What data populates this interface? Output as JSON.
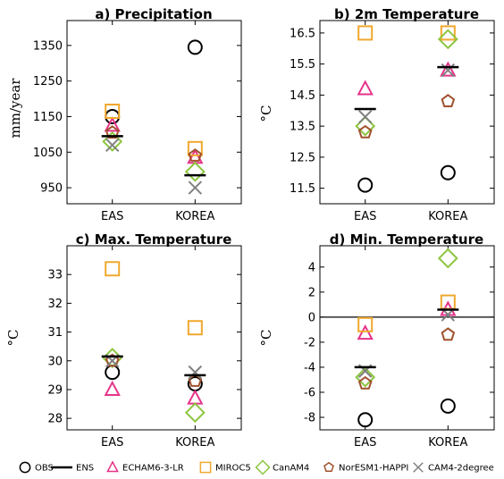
{
  "legend": [
    {
      "key": "OBS",
      "label": "OBS",
      "marker": "circle",
      "color": "#000000"
    },
    {
      "key": "ENS",
      "label": "ENS",
      "marker": "hline",
      "color": "#000000"
    },
    {
      "key": "ECHAM",
      "label": "ECHAM6-3-LR",
      "marker": "triangle",
      "color": "#e6338a"
    },
    {
      "key": "MIROC5",
      "label": "MIROC5",
      "marker": "square",
      "color": "#f0a82e"
    },
    {
      "key": "CanAM4",
      "label": "CanAM4",
      "marker": "diamond",
      "color": "#8dc63f"
    },
    {
      "key": "NorESM",
      "label": "NorESM1-HAPPI",
      "marker": "pentagon",
      "color": "#a0522d"
    },
    {
      "key": "CAM4",
      "label": "CAM4-2degree",
      "marker": "x",
      "color": "#808080"
    }
  ],
  "chart_data": [
    {
      "type": "scatter",
      "title": "a) Precipitation",
      "ylabel": "mm/year",
      "categories": [
        "EAS",
        "KOREA"
      ],
      "ylim": [
        905,
        1420
      ],
      "yticks": [
        950,
        1050,
        1150,
        1250,
        1350
      ],
      "zero_line": false,
      "series": [
        {
          "name": "OBS",
          "values": [
            1150,
            1345
          ]
        },
        {
          "name": "ENS",
          "values": [
            1095,
            985
          ]
        },
        {
          "name": "ECHAM6-3-LR",
          "values": [
            1125,
            1035
          ]
        },
        {
          "name": "MIROC5",
          "values": [
            1165,
            1060
          ]
        },
        {
          "name": "CanAM4",
          "values": [
            1080,
            995
          ]
        },
        {
          "name": "NorESM1-HAPPI",
          "values": [
            1105,
            1040
          ]
        },
        {
          "name": "CAM4-2degree",
          "values": [
            1070,
            950
          ]
        }
      ]
    },
    {
      "type": "scatter",
      "title": "b) 2m Temperature",
      "ylabel": "°C",
      "categories": [
        "EAS",
        "KOREA"
      ],
      "ylim": [
        11.0,
        16.9
      ],
      "yticks": [
        11.5,
        12.5,
        13.5,
        14.5,
        15.5,
        16.5
      ],
      "zero_line": false,
      "series": [
        {
          "name": "OBS",
          "values": [
            11.6,
            12.0
          ]
        },
        {
          "name": "ENS",
          "values": [
            14.05,
            15.4
          ]
        },
        {
          "name": "ECHAM6-3-LR",
          "values": [
            14.7,
            15.3
          ]
        },
        {
          "name": "MIROC5",
          "values": [
            16.5,
            16.5
          ]
        },
        {
          "name": "CanAM4",
          "values": [
            13.5,
            16.3
          ]
        },
        {
          "name": "NorESM1-HAPPI",
          "values": [
            13.3,
            14.3
          ]
        },
        {
          "name": "CAM4-2degree",
          "values": [
            13.8,
            15.3
          ]
        }
      ]
    },
    {
      "type": "scatter",
      "title": "c) Max. Temperature",
      "ylabel": "°C",
      "categories": [
        "EAS",
        "KOREA"
      ],
      "ylim": [
        27.6,
        34.0
      ],
      "yticks": [
        28,
        29,
        30,
        31,
        32,
        33
      ],
      "zero_line": false,
      "series": [
        {
          "name": "OBS",
          "values": [
            29.6,
            29.2
          ]
        },
        {
          "name": "ENS",
          "values": [
            30.15,
            29.5
          ]
        },
        {
          "name": "ECHAM6-3-LR",
          "values": [
            29.0,
            28.7
          ]
        },
        {
          "name": "MIROC5",
          "values": [
            33.2,
            31.15
          ]
        },
        {
          "name": "CanAM4",
          "values": [
            30.1,
            28.2
          ]
        },
        {
          "name": "NorESM1-HAPPI",
          "values": [
            30.0,
            29.3
          ]
        },
        {
          "name": "CAM4-2degree",
          "values": [
            30.0,
            29.6
          ]
        }
      ]
    },
    {
      "type": "scatter",
      "title": "d) Min. Temperature",
      "ylabel": "°C",
      "categories": [
        "EAS",
        "KOREA"
      ],
      "ylim": [
        -9.0,
        5.7
      ],
      "yticks": [
        -8,
        -6,
        -4,
        -2,
        0,
        2,
        4
      ],
      "zero_line": true,
      "series": [
        {
          "name": "OBS",
          "values": [
            -8.2,
            -7.1
          ]
        },
        {
          "name": "ENS",
          "values": [
            -4.0,
            0.6
          ]
        },
        {
          "name": "ECHAM6-3-LR",
          "values": [
            -1.3,
            0.6
          ]
        },
        {
          "name": "MIROC5",
          "values": [
            -0.6,
            1.2
          ]
        },
        {
          "name": "CanAM4",
          "values": [
            -4.8,
            4.7
          ]
        },
        {
          "name": "NorESM1-HAPPI",
          "values": [
            -5.3,
            -1.4
          ]
        },
        {
          "name": "CAM4-2degree",
          "values": [
            -4.3,
            0.2
          ]
        }
      ]
    }
  ]
}
